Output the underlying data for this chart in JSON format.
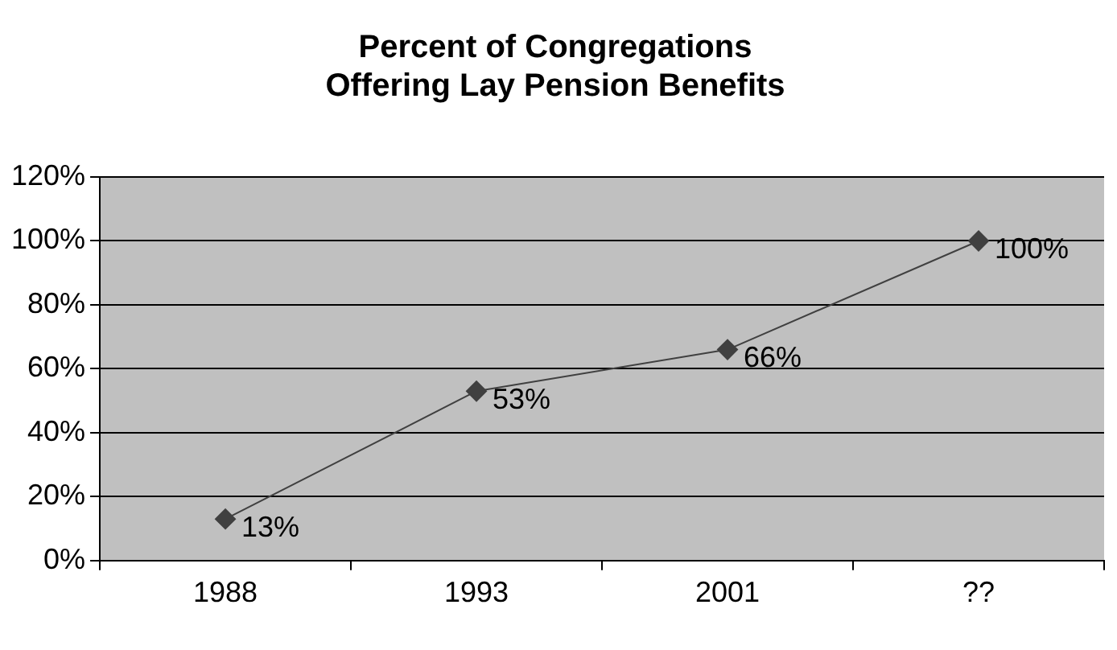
{
  "chart_data": {
    "type": "line",
    "title": "Percent of Congregations\nOffering Lay Pension Benefits",
    "categories": [
      "1988",
      "1993",
      "2001",
      "??"
    ],
    "series": [
      {
        "color": "#404040",
        "values": [
          13,
          53,
          66,
          100
        ],
        "value_labels": [
          "13%",
          "53%",
          "66%",
          "100%"
        ]
      }
    ],
    "ylim": [
      0,
      120
    ],
    "yticks": [
      {
        "value": 0,
        "label": "0%"
      },
      {
        "value": 20,
        "label": "20%"
      },
      {
        "value": 40,
        "label": "40%"
      },
      {
        "value": 60,
        "label": "60%"
      },
      {
        "value": 80,
        "label": "80%"
      },
      {
        "value": 100,
        "label": "100%"
      },
      {
        "value": 120,
        "label": "120%"
      }
    ],
    "grid": "y",
    "legend": false,
    "marker": "diamond",
    "line_style": "solid"
  }
}
